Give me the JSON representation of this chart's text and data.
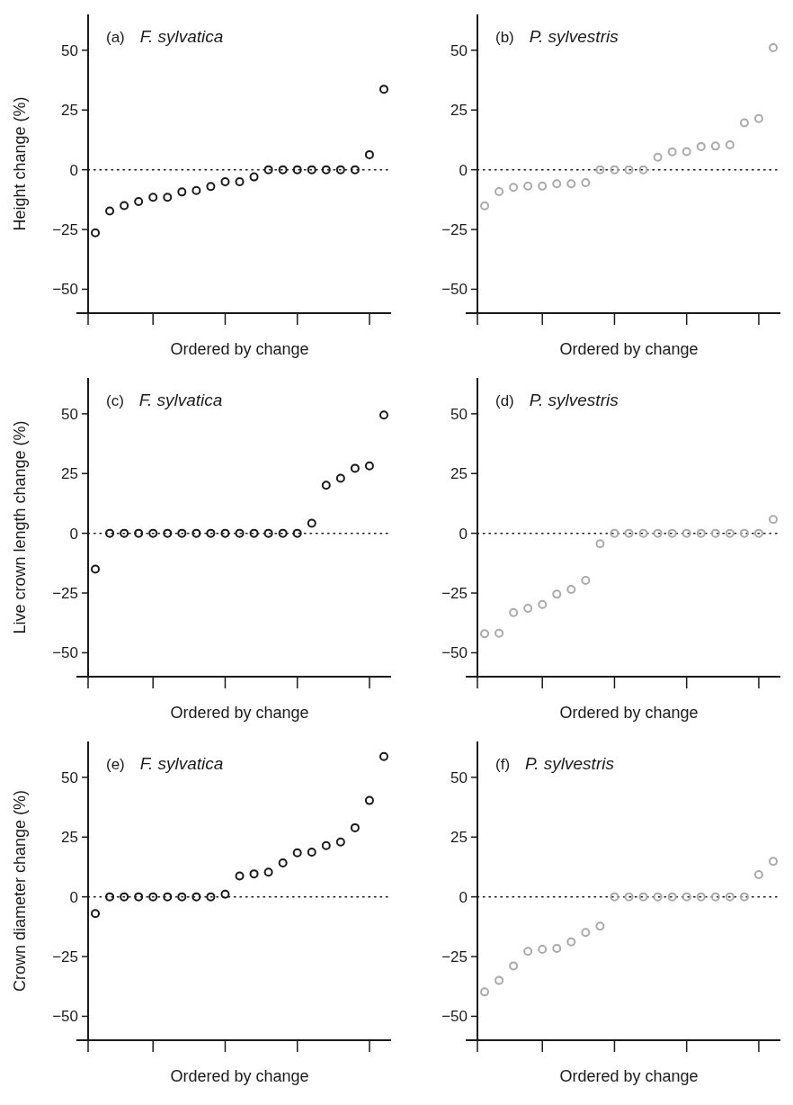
{
  "chart_data": [
    {
      "type": "scatter",
      "title": "F. sylvatica",
      "annotations": [
        "(a)"
      ],
      "ylabel": "Height change (%)",
      "xlabel": "Ordered by change",
      "categories": [
        null,
        null,
        null,
        null,
        null,
        null,
        null,
        null,
        null,
        null,
        null,
        null,
        null,
        null,
        null,
        null,
        null,
        null,
        null,
        null,
        null
      ],
      "ylim": [
        -60,
        65
      ],
      "yticks": [
        -50,
        -25,
        0,
        25,
        50
      ],
      "tick_labels": "y",
      "marker": "circle",
      "ref_lines": [
        {
          "axis": "y",
          "value": 0,
          "line_style": "dotted",
          "color": "#1a1a1a"
        }
      ],
      "series": [
        {
          "color": "#1a1a1a",
          "values": [
            -26.4,
            -17.3,
            -15,
            -13.3,
            -11.5,
            -11.5,
            -9.3,
            -8.7,
            -7,
            -5,
            -5,
            -3,
            0,
            0,
            0,
            0,
            0,
            0,
            0,
            6.3,
            33.7
          ]
        }
      ]
    },
    {
      "type": "scatter",
      "title": "P. sylvestris",
      "annotations": [
        "(b)"
      ],
      "xlabel": "Ordered by change",
      "categories": [
        null,
        null,
        null,
        null,
        null,
        null,
        null,
        null,
        null,
        null,
        null,
        null,
        null,
        null,
        null,
        null,
        null,
        null,
        null,
        null,
        null
      ],
      "ylim": [
        -60,
        65
      ],
      "yticks": [
        -50,
        -25,
        0,
        25,
        50
      ],
      "tick_labels": "y",
      "marker": "circle",
      "ref_lines": [
        {
          "axis": "y",
          "value": 0,
          "line_style": "dotted",
          "color": "#1a1a1a"
        }
      ],
      "series": [
        {
          "color": "#aaaaaa",
          "values": [
            -15.1,
            -9.2,
            -7.4,
            -6.8,
            -6.8,
            -5.9,
            -5.9,
            -5.4,
            0,
            0,
            0,
            0,
            5.2,
            7.5,
            7.6,
            9.7,
            9.9,
            10.4,
            19.6,
            21.4,
            51.1
          ]
        }
      ]
    },
    {
      "type": "scatter",
      "title": "F. sylvatica",
      "annotations": [
        "(c)"
      ],
      "ylabel": "Live crown length change (%)",
      "xlabel": "Ordered by change",
      "categories": [
        null,
        null,
        null,
        null,
        null,
        null,
        null,
        null,
        null,
        null,
        null,
        null,
        null,
        null,
        null,
        null,
        null,
        null,
        null,
        null,
        null
      ],
      "ylim": [
        -60,
        65
      ],
      "yticks": [
        -50,
        -25,
        0,
        25,
        50
      ],
      "tick_labels": "y",
      "marker": "circle",
      "ref_lines": [
        {
          "axis": "y",
          "value": 0,
          "line_style": "dotted",
          "color": "#1a1a1a"
        }
      ],
      "series": [
        {
          "color": "#1a1a1a",
          "values": [
            -15,
            0,
            0,
            0,
            0,
            0,
            0,
            0,
            0,
            0,
            0,
            0,
            0,
            0,
            0,
            4.2,
            20.1,
            23,
            27.2,
            28.2,
            49.5
          ]
        }
      ]
    },
    {
      "type": "scatter",
      "title": "P. sylvestris",
      "annotations": [
        "(d)"
      ],
      "xlabel": "Ordered by change",
      "categories": [
        null,
        null,
        null,
        null,
        null,
        null,
        null,
        null,
        null,
        null,
        null,
        null,
        null,
        null,
        null,
        null,
        null,
        null,
        null,
        null,
        null
      ],
      "ylim": [
        -60,
        65
      ],
      "yticks": [
        -50,
        -25,
        0,
        25,
        50
      ],
      "tick_labels": "y",
      "marker": "circle",
      "ref_lines": [
        {
          "axis": "y",
          "value": 0,
          "line_style": "dotted",
          "color": "#1a1a1a"
        }
      ],
      "series": [
        {
          "color": "#aaaaaa",
          "values": [
            -42,
            -41.8,
            -33.2,
            -31.4,
            -29.8,
            -25.5,
            -23.5,
            -19.7,
            -4.4,
            0,
            0,
            0,
            0,
            0,
            0,
            0,
            0,
            0,
            0,
            0,
            5.8
          ]
        }
      ]
    },
    {
      "type": "scatter",
      "title": "F. sylvatica",
      "annotations": [
        "(e)"
      ],
      "ylabel": "Crown diameter change (%)",
      "xlabel": "Ordered by change",
      "categories": [
        null,
        null,
        null,
        null,
        null,
        null,
        null,
        null,
        null,
        null,
        null,
        null,
        null,
        null,
        null,
        null,
        null,
        null,
        null,
        null,
        null
      ],
      "ylim": [
        -60,
        65
      ],
      "yticks": [
        -50,
        -25,
        0,
        25,
        50
      ],
      "tick_labels": "y",
      "marker": "circle",
      "ref_lines": [
        {
          "axis": "y",
          "value": 0,
          "line_style": "dotted",
          "color": "#1a1a1a"
        }
      ],
      "series": [
        {
          "color": "#1a1a1a",
          "values": [
            -7,
            0,
            0,
            0,
            0,
            0,
            0,
            0,
            0,
            1.1,
            8.7,
            9.6,
            10.3,
            14.2,
            18.4,
            18.7,
            21.4,
            22.9,
            28.9,
            40.3,
            58.7
          ]
        }
      ]
    },
    {
      "type": "scatter",
      "title": "P. sylvestris",
      "annotations": [
        "(f)"
      ],
      "xlabel": "Ordered by change",
      "categories": [
        null,
        null,
        null,
        null,
        null,
        null,
        null,
        null,
        null,
        null,
        null,
        null,
        null,
        null,
        null,
        null,
        null,
        null,
        null,
        null,
        null
      ],
      "ylim": [
        -60,
        65
      ],
      "yticks": [
        -50,
        -25,
        0,
        25,
        50
      ],
      "tick_labels": "y",
      "marker": "circle",
      "ref_lines": [
        {
          "axis": "y",
          "value": 0,
          "line_style": "dotted",
          "color": "#1a1a1a"
        }
      ],
      "series": [
        {
          "color": "#aaaaaa",
          "values": [
            -39.8,
            -35,
            -28.9,
            -22.8,
            -22,
            -21.6,
            -18.9,
            -14.9,
            -12.3,
            0,
            0,
            0,
            0,
            0,
            0,
            0,
            0,
            0,
            0,
            9.3,
            14.8
          ]
        }
      ]
    }
  ]
}
